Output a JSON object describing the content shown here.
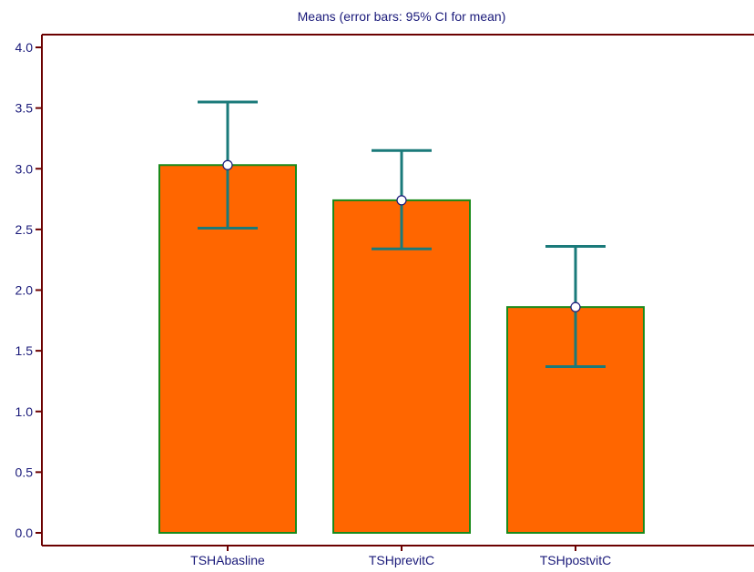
{
  "chart_data": {
    "type": "bar",
    "title": "Means  (error bars: 95% CI for mean)",
    "xlabel": "",
    "ylabel": "",
    "categories": [
      "TSHAbasline",
      "TSHprevitC",
      "TSHpostvitC"
    ],
    "values": [
      3.03,
      2.74,
      1.86
    ],
    "ci_lower": [
      2.51,
      2.34,
      1.37
    ],
    "ci_upper": [
      3.55,
      3.15,
      2.36
    ],
    "ylim": [
      0.0,
      4.0
    ],
    "yticks": [
      "0.0",
      "0.5",
      "1.0",
      "1.5",
      "2.0",
      "2.5",
      "3.0",
      "3.5",
      "4.0"
    ],
    "grid": false,
    "legend": "none",
    "colors": {
      "bar_fill": "#ff6600",
      "bar_stroke": "#1a8a1a",
      "error_bar": "#1a7a7a",
      "axis": "#6b0000",
      "text": "#1a1a7a",
      "marker_fill": "#ffffff",
      "marker_stroke": "#1a1a7a"
    }
  }
}
